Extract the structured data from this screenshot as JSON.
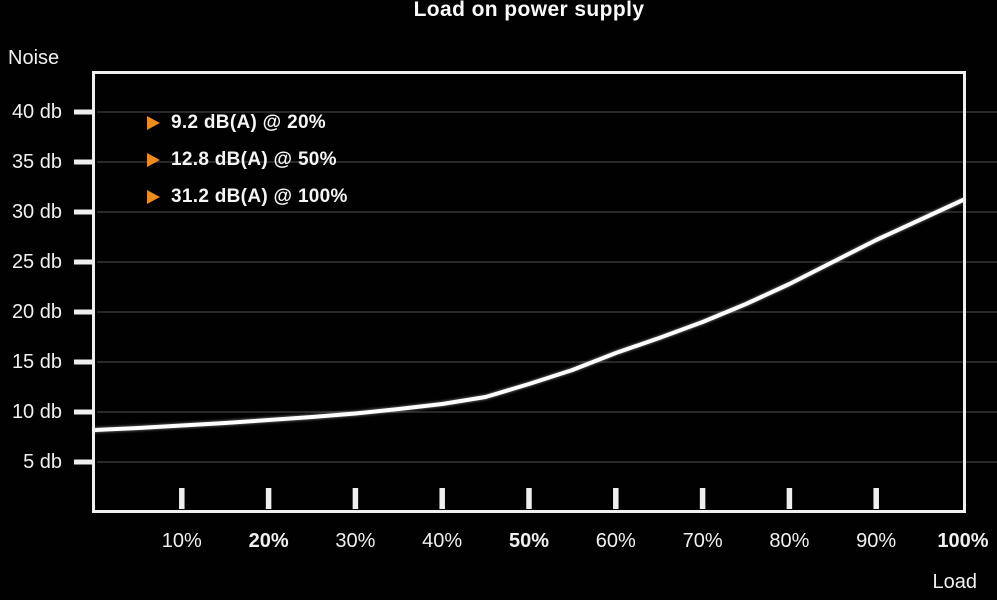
{
  "chart_data": {
    "type": "line",
    "title": "Load on power supply",
    "ylabel": "Noise",
    "xlabel": "Load",
    "xlim": [
      0,
      100
    ],
    "ylim": [
      0,
      44
    ],
    "grid": {
      "horizontal": true,
      "vertical": false
    },
    "legend_position": "top-left-inside",
    "colors": {
      "background": "#010101",
      "foreground": "#f2f2f2",
      "curve": "#fdfdfd",
      "axis_border": "#efefef",
      "grid": "#26282b",
      "accent_orange": "#ef8a1e"
    },
    "y_ticks": [
      {
        "value": 40,
        "label": "40 db",
        "bold": false
      },
      {
        "value": 35,
        "label": "35 db",
        "bold": false
      },
      {
        "value": 30,
        "label": "30 db",
        "bold": false
      },
      {
        "value": 25,
        "label": "25 db",
        "bold": false
      },
      {
        "value": 20,
        "label": "20 db",
        "bold": false
      },
      {
        "value": 15,
        "label": "15 db",
        "bold": false
      },
      {
        "value": 10,
        "label": "10 db",
        "bold": false
      },
      {
        "value": 5,
        "label": "5 db",
        "bold": false
      }
    ],
    "x_ticks": [
      {
        "value": 10,
        "label": "10%",
        "bold": false,
        "has_tick": true
      },
      {
        "value": 20,
        "label": "20%",
        "bold": true,
        "has_tick": true
      },
      {
        "value": 30,
        "label": "30%",
        "bold": false,
        "has_tick": true
      },
      {
        "value": 40,
        "label": "40%",
        "bold": false,
        "has_tick": true
      },
      {
        "value": 50,
        "label": "50%",
        "bold": true,
        "has_tick": true
      },
      {
        "value": 60,
        "label": "60%",
        "bold": false,
        "has_tick": true
      },
      {
        "value": 70,
        "label": "70%",
        "bold": false,
        "has_tick": true
      },
      {
        "value": 80,
        "label": "80%",
        "bold": false,
        "has_tick": true
      },
      {
        "value": 90,
        "label": "90%",
        "bold": false,
        "has_tick": true
      },
      {
        "value": 100,
        "label": "100%",
        "bold": true,
        "has_tick": false
      }
    ],
    "series": [
      {
        "name": "noise-curve",
        "color": "#fdfdfd",
        "points": [
          [
            0,
            8.2
          ],
          [
            5,
            8.4
          ],
          [
            10,
            8.65
          ],
          [
            15,
            8.9
          ],
          [
            20,
            9.2
          ],
          [
            25,
            9.5
          ],
          [
            30,
            9.85
          ],
          [
            35,
            10.3
          ],
          [
            40,
            10.8
          ],
          [
            45,
            11.5
          ],
          [
            50,
            12.8
          ],
          [
            55,
            14.2
          ],
          [
            60,
            15.9
          ],
          [
            65,
            17.4
          ],
          [
            70,
            19.0
          ],
          [
            75,
            20.8
          ],
          [
            80,
            22.8
          ],
          [
            85,
            25.0
          ],
          [
            90,
            27.2
          ],
          [
            95,
            29.2
          ],
          [
            100,
            31.2
          ]
        ]
      }
    ],
    "annotations": [
      {
        "label": "9.2 dB(A) @ 20%",
        "x": 20,
        "y": 9.2,
        "marker": "triangle-right",
        "marker_color": "#ef8a1e"
      },
      {
        "label": "12.8 dB(A) @ 50%",
        "x": 50,
        "y": 12.8,
        "marker": "triangle-right",
        "marker_color": "#ef8a1e"
      },
      {
        "label": "31.2 dB(A) @ 100%",
        "x": 100,
        "y": 31.2,
        "marker": "triangle-right",
        "marker_color": "#ef8a1e"
      }
    ]
  }
}
